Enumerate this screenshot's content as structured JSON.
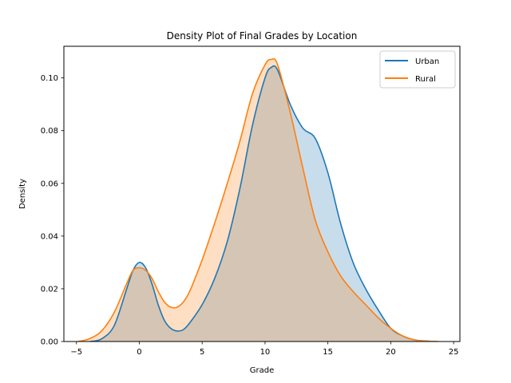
{
  "chart_data": {
    "type": "area",
    "title": "Density Plot of Final Grades by Location",
    "xlabel": "Grade",
    "ylabel": "Density",
    "xlim": [
      -6,
      25.5
    ],
    "ylim": [
      0,
      0.112
    ],
    "xticks": [
      -5,
      0,
      5,
      10,
      15,
      20,
      25
    ],
    "xtick_labels": [
      "−5",
      "0",
      "5",
      "10",
      "15",
      "20",
      "25"
    ],
    "yticks": [
      0,
      0.02,
      0.04,
      0.06,
      0.08,
      0.1
    ],
    "ytick_labels": [
      "0.00",
      "0.02",
      "0.04",
      "0.06",
      "0.08",
      "0.10"
    ],
    "grid": false,
    "legend_position": "top-right",
    "series": [
      {
        "name": "Urban",
        "color": "#1f77b4",
        "x": [
          -3.9,
          -3,
          -2,
          -1,
          -0.5,
          0,
          0.5,
          1,
          1.5,
          2,
          2.5,
          3,
          3.5,
          4,
          5,
          6,
          7,
          8,
          9,
          10,
          10.5,
          11,
          12,
          13,
          14,
          15,
          16,
          17,
          18,
          19,
          20,
          21,
          22,
          23.5
        ],
        "y": [
          0.0,
          0.001,
          0.006,
          0.02,
          0.027,
          0.03,
          0.028,
          0.022,
          0.014,
          0.008,
          0.005,
          0.004,
          0.0045,
          0.007,
          0.014,
          0.024,
          0.038,
          0.058,
          0.082,
          0.1,
          0.104,
          0.103,
          0.09,
          0.081,
          0.077,
          0.064,
          0.045,
          0.03,
          0.02,
          0.012,
          0.005,
          0.002,
          0.0005,
          0.0
        ]
      },
      {
        "name": "Rural",
        "color": "#ff7f0e",
        "x": [
          -4.9,
          -4,
          -3,
          -2,
          -1,
          -0.5,
          0,
          0.5,
          1,
          1.5,
          2,
          2.5,
          3,
          3.5,
          4,
          5,
          6,
          7,
          8,
          9,
          10,
          10.5,
          11,
          12,
          13,
          14,
          15,
          16,
          17,
          18,
          19,
          20,
          21,
          22,
          23,
          23.8
        ],
        "y": [
          0.0,
          0.001,
          0.004,
          0.011,
          0.022,
          0.027,
          0.028,
          0.027,
          0.024,
          0.019,
          0.015,
          0.013,
          0.013,
          0.015,
          0.019,
          0.031,
          0.045,
          0.06,
          0.076,
          0.094,
          0.105,
          0.107,
          0.105,
          0.087,
          0.066,
          0.046,
          0.034,
          0.025,
          0.019,
          0.014,
          0.009,
          0.005,
          0.002,
          0.0005,
          0.0001,
          0.0
        ]
      }
    ]
  }
}
